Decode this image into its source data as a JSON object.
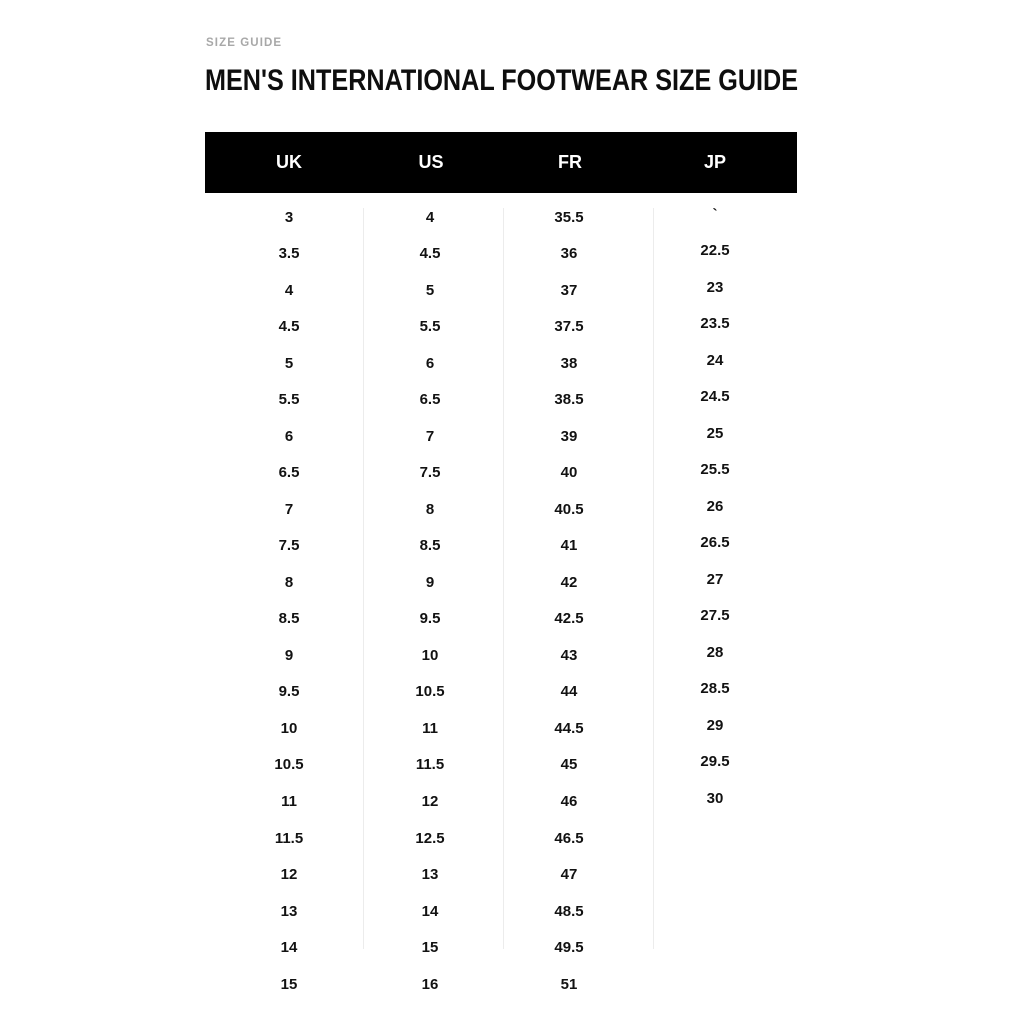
{
  "page": {
    "eyebrow": "SIZE GUIDE",
    "title": "MEN'S INTERNATIONAL FOOTWEAR SIZE GUIDE"
  },
  "table": {
    "columns": [
      "UK",
      "US",
      "FR",
      "JP"
    ],
    "rows": [
      [
        "3",
        "4",
        "35.5",
        "`"
      ],
      [
        "3.5",
        "4.5",
        "36",
        "22.5"
      ],
      [
        "4",
        "5",
        "37",
        "23"
      ],
      [
        "4.5",
        "5.5",
        "37.5",
        "23.5"
      ],
      [
        "5",
        "6",
        "38",
        "24"
      ],
      [
        "5.5",
        "6.5",
        "38.5",
        "24.5"
      ],
      [
        "6",
        "7",
        "39",
        "25"
      ],
      [
        "6.5",
        "7.5",
        "40",
        "25.5"
      ],
      [
        "7",
        "8",
        "40.5",
        "26"
      ],
      [
        "7.5",
        "8.5",
        "41",
        "26.5"
      ],
      [
        "8",
        "9",
        "42",
        "27"
      ],
      [
        "8.5",
        "9.5",
        "42.5",
        "27.5"
      ],
      [
        "9",
        "10",
        "43",
        "28"
      ],
      [
        "9.5",
        "10.5",
        "44",
        "28.5"
      ],
      [
        "10",
        "11",
        "44.5",
        "29"
      ],
      [
        "10.5",
        "11.5",
        "45",
        "29.5"
      ],
      [
        "11",
        "12",
        "46",
        "30"
      ],
      [
        "11.5",
        "12.5",
        "46.5",
        ""
      ],
      [
        "12",
        "13",
        "47",
        ""
      ],
      [
        "13",
        "14",
        "48.5",
        ""
      ],
      [
        "14",
        "15",
        "49.5",
        ""
      ],
      [
        "15",
        "16",
        "51",
        ""
      ]
    ]
  },
  "colors": {
    "background": "#ffffff",
    "header_bar_bg": "#000000",
    "header_bar_text": "#ffffff",
    "eyebrow_text": "#a8a8a8",
    "cell_text": "#121212",
    "divider": "#ececec"
  }
}
